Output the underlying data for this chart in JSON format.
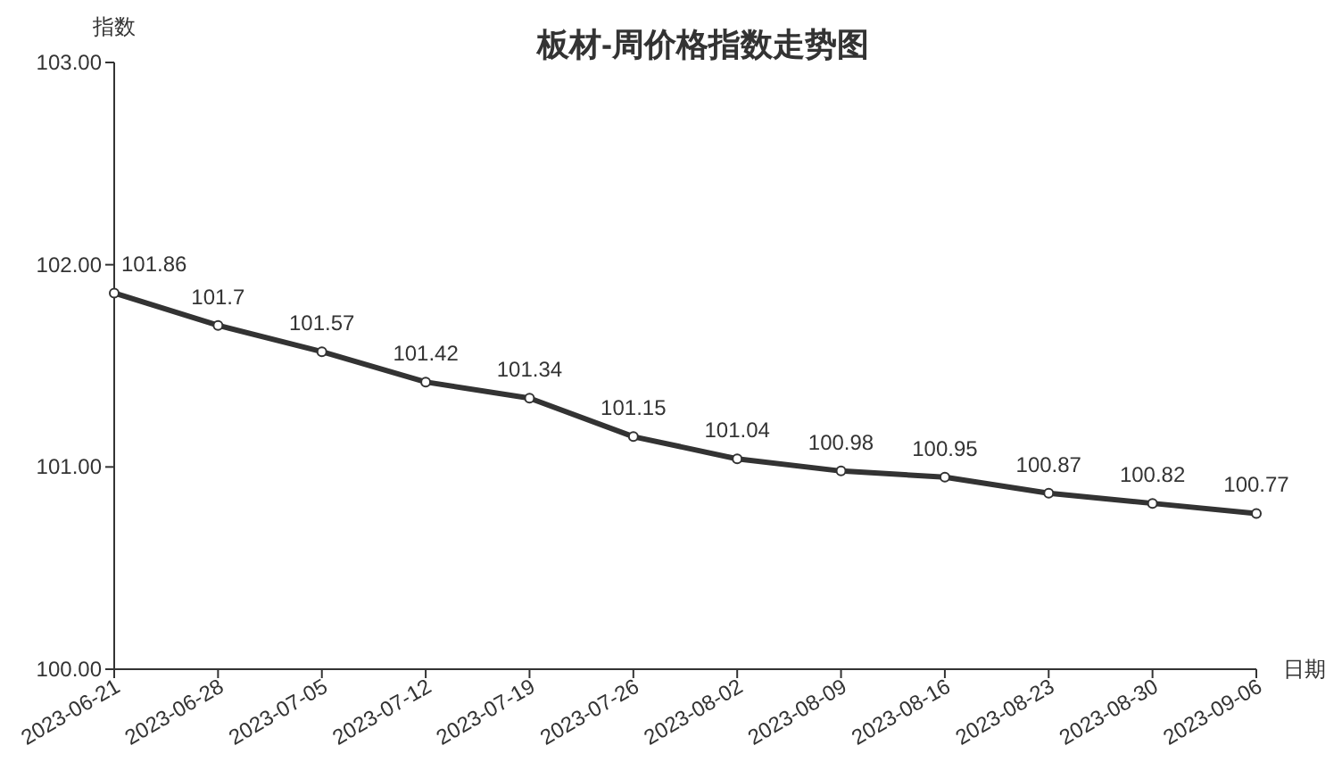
{
  "chart_data": {
    "type": "line",
    "title": "板材-周价格指数走势图",
    "xlabel": "日期",
    "ylabel": "指数",
    "categories": [
      "2023-06-21",
      "2023-06-28",
      "2023-07-05",
      "2023-07-12",
      "2023-07-19",
      "2023-07-26",
      "2023-08-02",
      "2023-08-09",
      "2023-08-16",
      "2023-08-23",
      "2023-08-30",
      "2023-09-06"
    ],
    "series": [
      {
        "color": "#333333",
        "values": [
          101.86,
          101.7,
          101.57,
          101.42,
          101.34,
          101.15,
          101.04,
          100.98,
          100.95,
          100.87,
          100.82,
          100.77
        ]
      }
    ],
    "ylim": [
      100,
      103
    ],
    "yticks": [
      {
        "value": 100,
        "label": "100.00"
      },
      {
        "value": 101,
        "label": "101.00"
      },
      {
        "value": 102,
        "label": "102.00"
      },
      {
        "value": 103,
        "label": "103.00"
      }
    ],
    "data_labels": true,
    "marker": "circle",
    "line_style": "solid"
  }
}
